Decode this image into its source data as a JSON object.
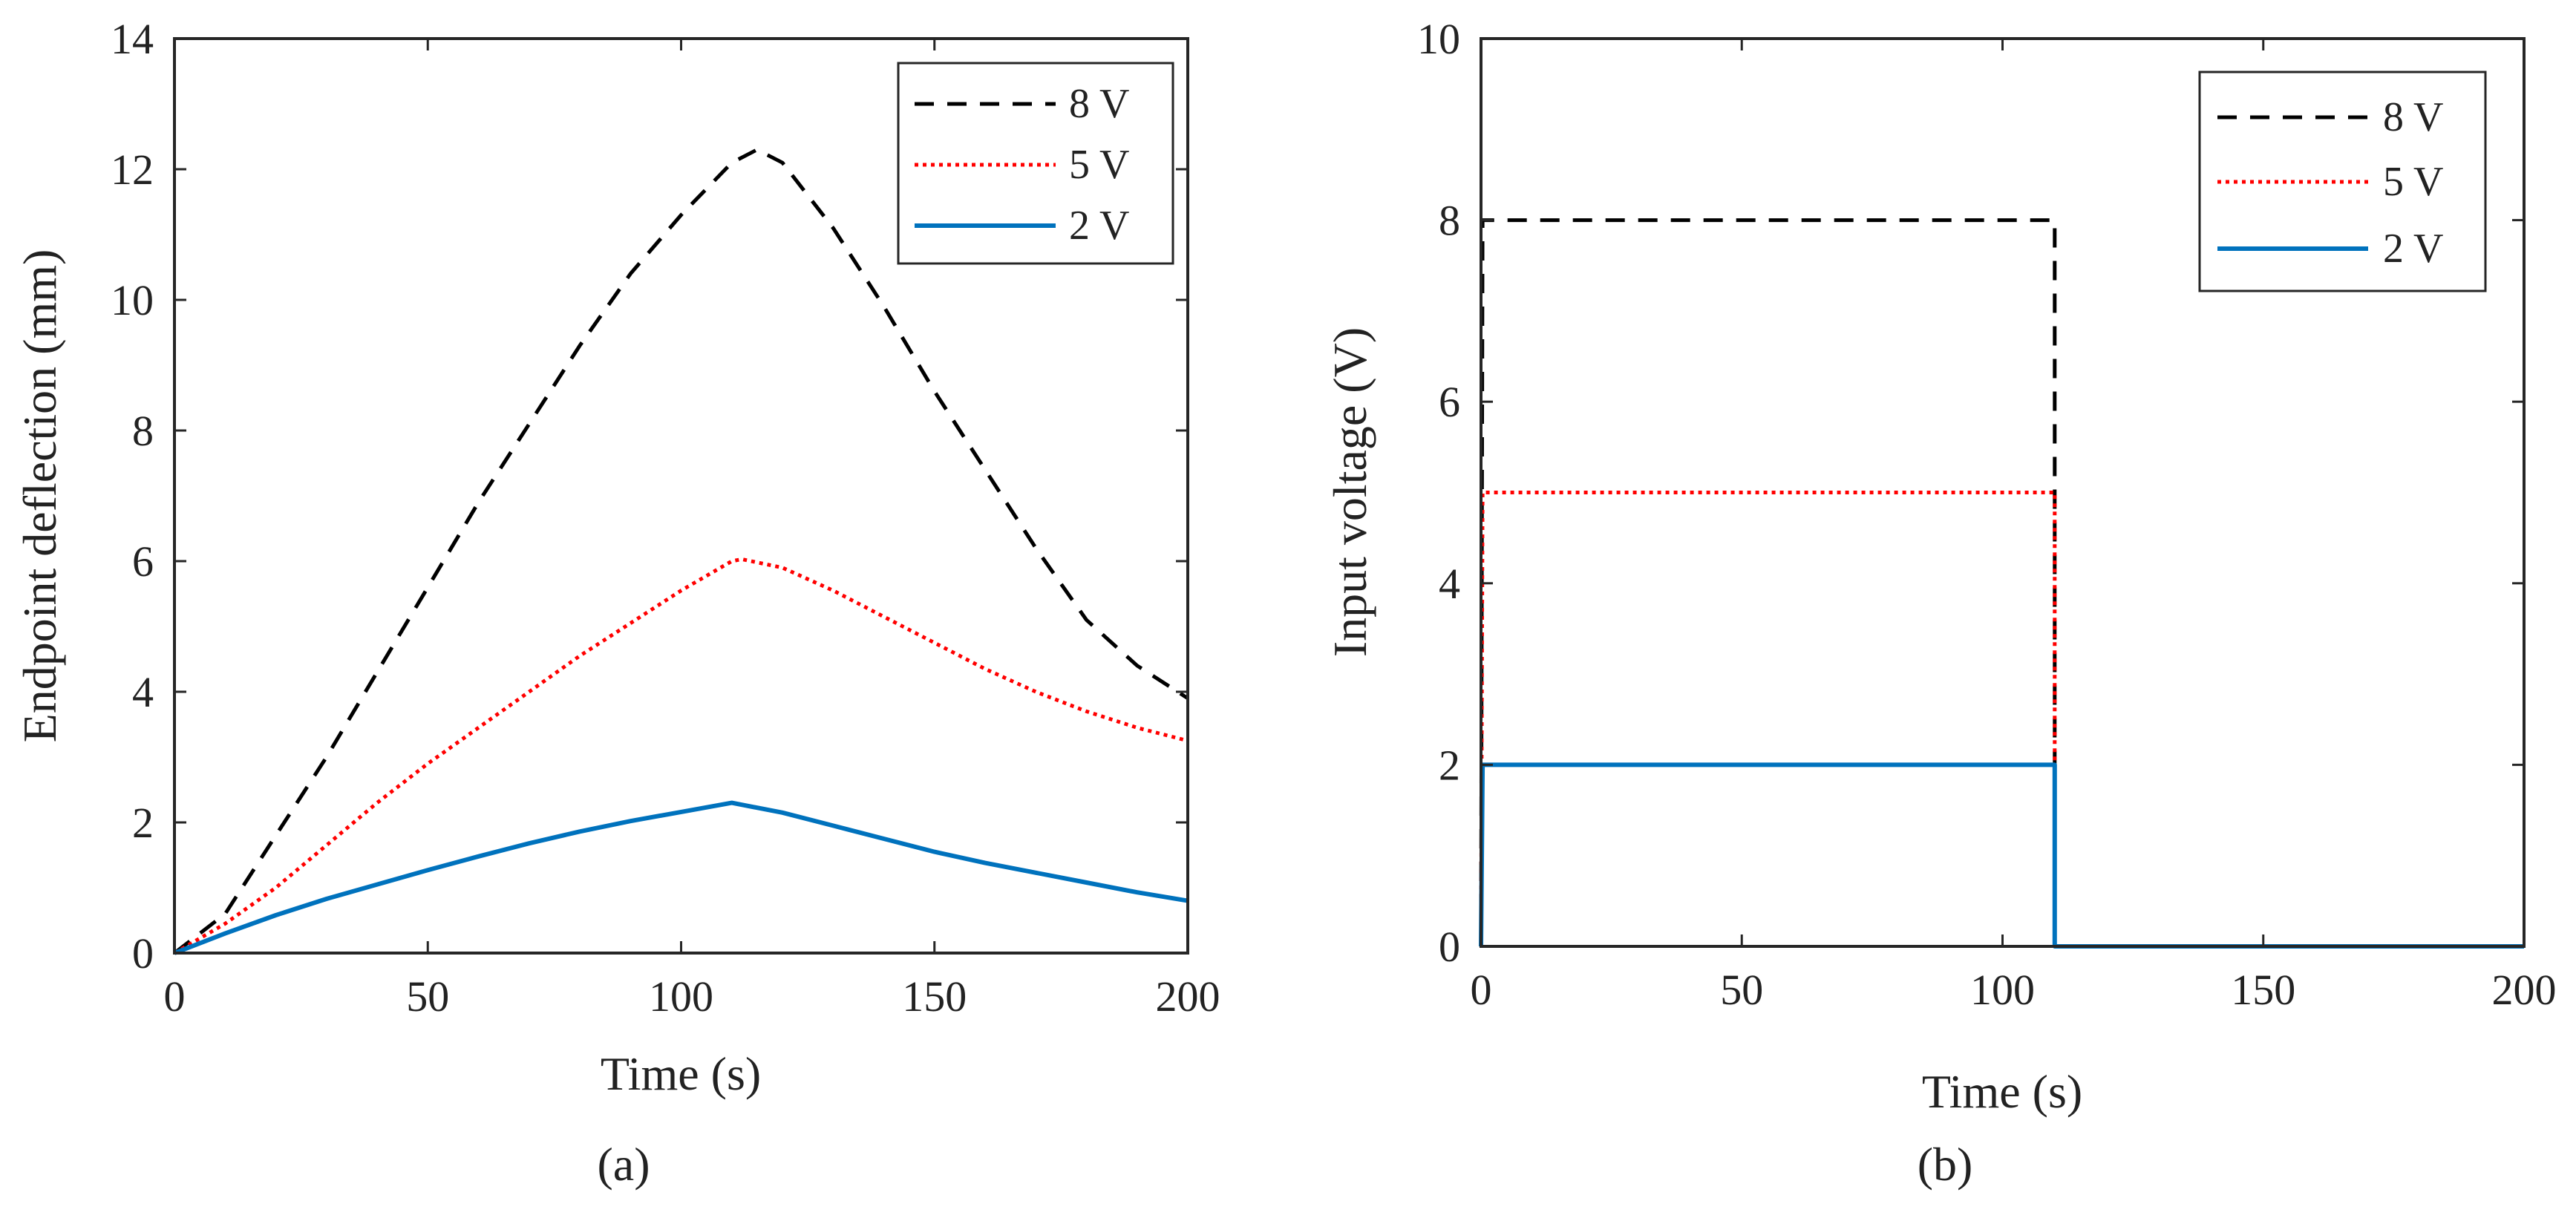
{
  "chart_data": [
    {
      "type": "line",
      "panel": "a",
      "caption": "(a)",
      "xlabel": "Time (s)",
      "ylabel": "Endpoint deflection (mm)",
      "xlim": [
        0,
        200
      ],
      "ylim": [
        0,
        14
      ],
      "xticks": [
        0,
        50,
        100,
        150,
        200
      ],
      "yticks": [
        0,
        2,
        4,
        6,
        8,
        10,
        12,
        14
      ],
      "legend_position": "top-right",
      "series": [
        {
          "name": "8 V",
          "color": "#000000",
          "style": "dashed",
          "x": [
            0,
            10,
            20,
            30,
            40,
            50,
            60,
            70,
            80,
            90,
            100,
            110,
            115,
            120,
            130,
            140,
            150,
            160,
            170,
            180,
            190,
            200
          ],
          "y": [
            0,
            0.6,
            1.8,
            3.0,
            4.3,
            5.6,
            6.9,
            8.1,
            9.3,
            10.4,
            11.3,
            12.1,
            12.3,
            12.1,
            11.1,
            9.9,
            8.6,
            7.4,
            6.2,
            5.1,
            4.4,
            3.9
          ]
        },
        {
          "name": "5 V",
          "color": "#ff0000",
          "style": "dotted",
          "x": [
            0,
            10,
            20,
            30,
            40,
            50,
            60,
            70,
            80,
            90,
            100,
            110,
            112,
            120,
            130,
            140,
            150,
            160,
            170,
            180,
            190,
            200
          ],
          "y": [
            0,
            0.45,
            1.0,
            1.65,
            2.3,
            2.9,
            3.45,
            4.0,
            4.55,
            5.05,
            5.55,
            6.0,
            6.03,
            5.9,
            5.55,
            5.15,
            4.75,
            4.35,
            4.0,
            3.7,
            3.45,
            3.25
          ]
        },
        {
          "name": "2 V",
          "color": "#0072bd",
          "style": "solid",
          "x": [
            0,
            10,
            20,
            30,
            40,
            50,
            60,
            70,
            80,
            90,
            100,
            110,
            120,
            130,
            140,
            150,
            160,
            170,
            180,
            190,
            200
          ],
          "y": [
            0,
            0.3,
            0.58,
            0.83,
            1.05,
            1.27,
            1.48,
            1.68,
            1.86,
            2.02,
            2.16,
            2.3,
            2.15,
            1.95,
            1.75,
            1.55,
            1.38,
            1.23,
            1.08,
            0.93,
            0.8
          ]
        }
      ]
    },
    {
      "type": "line",
      "panel": "b",
      "caption": "(b)",
      "xlabel": "Time (s)",
      "ylabel": "Input voltage (V)",
      "xlim": [
        0,
        200
      ],
      "ylim": [
        0,
        10
      ],
      "xticks": [
        0,
        50,
        100,
        150,
        200
      ],
      "yticks": [
        0,
        2,
        4,
        6,
        8,
        10
      ],
      "legend_position": "top-right",
      "series": [
        {
          "name": "8 V",
          "color": "#000000",
          "style": "dashed",
          "x": [
            0,
            0.3,
            110,
            110,
            200
          ],
          "y": [
            0,
            8,
            8,
            0,
            0
          ]
        },
        {
          "name": "5 V",
          "color": "#ff0000",
          "style": "dotted",
          "x": [
            0,
            0.3,
            110,
            110,
            200
          ],
          "y": [
            0,
            5,
            5,
            0,
            0
          ]
        },
        {
          "name": "2 V",
          "color": "#0072bd",
          "style": "solid",
          "x": [
            0,
            0.3,
            110,
            110,
            200
          ],
          "y": [
            0,
            2,
            2,
            0,
            0
          ]
        }
      ]
    }
  ]
}
